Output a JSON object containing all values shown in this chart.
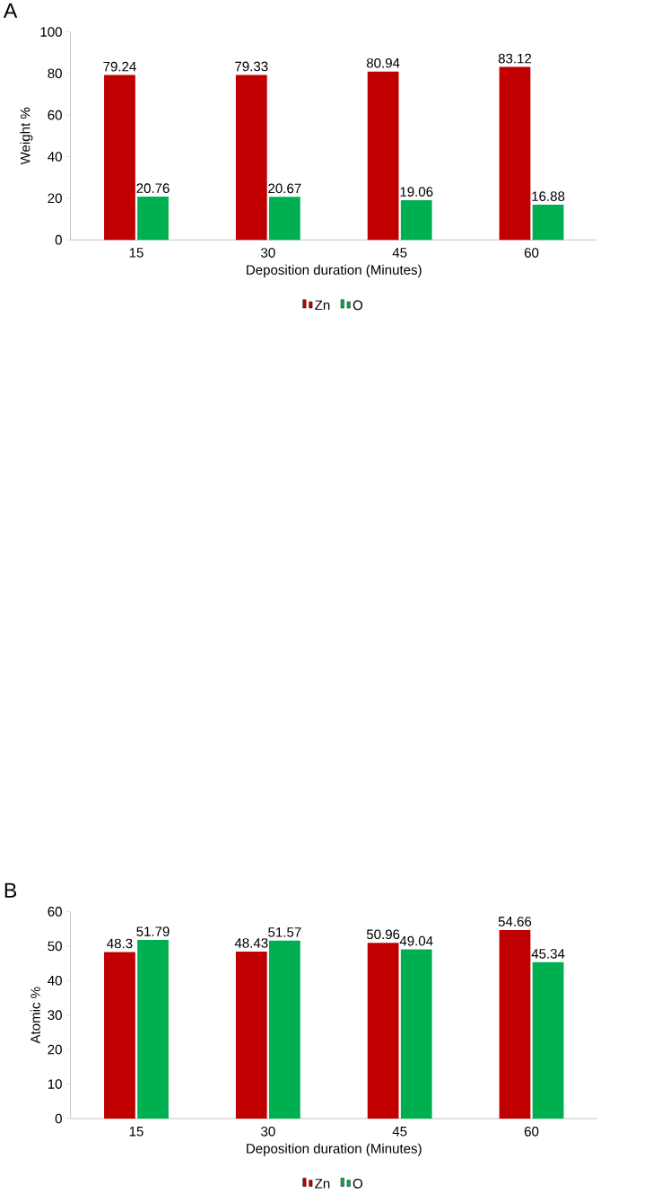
{
  "chart_data": [
    {
      "type": "bar",
      "title": "A",
      "categories": [
        "15",
        "30",
        "45",
        "60"
      ],
      "xlabel": "Deposition duration (Minutes)",
      "ylabel": "Weight %",
      "ylim": [
        0,
        100
      ],
      "yticks": [
        0,
        20,
        40,
        60,
        80,
        100
      ],
      "legend": "bottom",
      "data_labels": true,
      "series": [
        {
          "name": "Zn",
          "color": "#c00000",
          "values": [
            79.24,
            79.33,
            80.94,
            83.12
          ]
        },
        {
          "name": "O",
          "color": "#00b050",
          "values": [
            20.76,
            20.67,
            19.06,
            16.88
          ]
        }
      ]
    },
    {
      "type": "bar",
      "title": "B",
      "categories": [
        "15",
        "30",
        "45",
        "60"
      ],
      "xlabel": "Deposition duration (Minutes)",
      "ylabel": "Atomic %",
      "ylim": [
        0,
        60
      ],
      "yticks": [
        0,
        10,
        20,
        30,
        40,
        50,
        60
      ],
      "legend": "bottom",
      "data_labels": true,
      "series": [
        {
          "name": "Zn",
          "color": "#c00000",
          "values": [
            48.3,
            48.43,
            50.96,
            54.66
          ]
        },
        {
          "name": "O",
          "color": "#00b050",
          "values": [
            51.79,
            51.57,
            49.04,
            45.34
          ]
        }
      ]
    }
  ]
}
